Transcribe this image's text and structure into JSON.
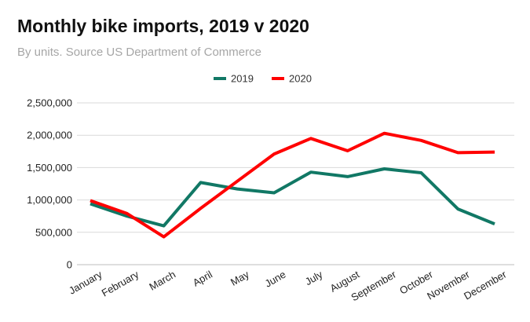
{
  "chart_data": {
    "type": "line",
    "title": "Monthly bike imports, 2019 v 2020",
    "subtitle": "By units. Source US Department of Commerce",
    "xlabel": "",
    "ylabel": "",
    "categories": [
      "January",
      "February",
      "March",
      "April",
      "May",
      "June",
      "July",
      "August",
      "September",
      "October",
      "November",
      "December"
    ],
    "series": [
      {
        "name": "2019",
        "color": "#117865",
        "values": [
          940000,
          750000,
          600000,
          1270000,
          1170000,
          1110000,
          1430000,
          1360000,
          1480000,
          1420000,
          860000,
          630000
        ]
      },
      {
        "name": "2020",
        "color": "#ff0000",
        "values": [
          990000,
          790000,
          430000,
          870000,
          1290000,
          1710000,
          1950000,
          1760000,
          2030000,
          1920000,
          1730000,
          1740000
        ]
      }
    ],
    "ylim": [
      0,
      2500000
    ],
    "yticks": [
      0,
      500000,
      1000000,
      1500000,
      2000000,
      2500000
    ],
    "ytick_labels": [
      "0",
      "500,000",
      "1,000,000",
      "1,500,000",
      "2,000,000",
      "2,500,000"
    ],
    "grid": true,
    "legend": "top-center"
  }
}
